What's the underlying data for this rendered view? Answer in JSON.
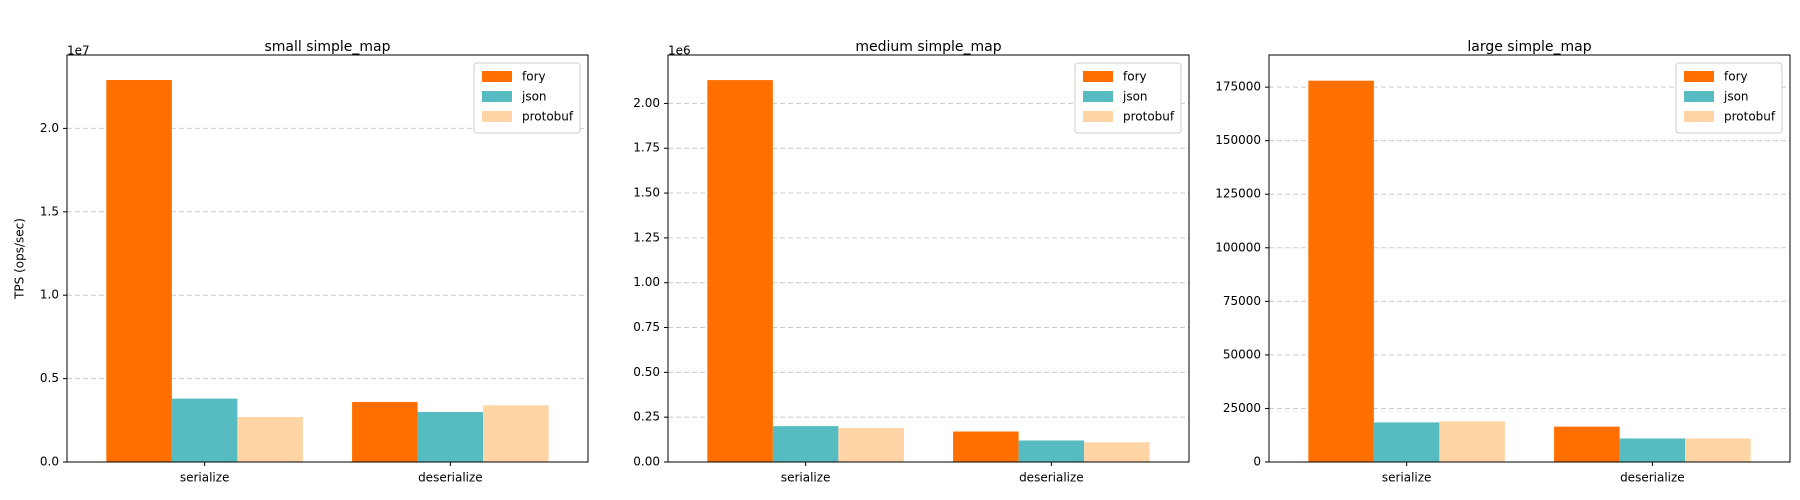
{
  "chart_data": [
    {
      "type": "bar",
      "title": "small simple_map",
      "ylabel": "TPS (ops/sec)",
      "y_offset_label": "1e7",
      "categories": [
        "serialize",
        "deserialize"
      ],
      "series": [
        {
          "name": "fory",
          "color": "#ff6f00",
          "values": [
            2.29,
            0.36
          ]
        },
        {
          "name": "json",
          "color": "#56bcc2",
          "values": [
            0.38,
            0.3
          ]
        },
        {
          "name": "protobuf",
          "color": "#ffd5a6",
          "values": [
            0.27,
            0.34
          ]
        }
      ],
      "ylim": [
        0,
        2.44
      ],
      "yticks": [
        {
          "value": 0,
          "label": "0.0"
        },
        0.5,
        {
          "value": 1,
          "label": "1.0"
        },
        1.5,
        {
          "value": 2,
          "label": "2.0"
        }
      ],
      "grid": true,
      "legend": "upper-right"
    },
    {
      "type": "bar",
      "title": "medium simple_map",
      "y_offset_label": "1e6",
      "categories": [
        "serialize",
        "deserialize"
      ],
      "series": [
        {
          "name": "fory",
          "color": "#ff6f00",
          "values": [
            2.13,
            0.17
          ]
        },
        {
          "name": "json",
          "color": "#56bcc2",
          "values": [
            0.2,
            0.12
          ]
        },
        {
          "name": "protobuf",
          "color": "#ffd5a6",
          "values": [
            0.19,
            0.11
          ]
        }
      ],
      "ylim": [
        0,
        2.27
      ],
      "yticks": [
        {
          "value": 0,
          "label": "0.00"
        },
        0.25,
        {
          "value": 0.5,
          "label": "0.50"
        },
        0.75,
        {
          "value": 1,
          "label": "1.00"
        },
        1.25,
        {
          "value": 1.5,
          "label": "1.50"
        },
        1.75,
        {
          "value": 2,
          "label": "2.00"
        }
      ],
      "grid": true,
      "legend": "upper-right"
    },
    {
      "type": "bar",
      "title": "large simple_map",
      "categories": [
        "serialize",
        "deserialize"
      ],
      "series": [
        {
          "name": "fory",
          "color": "#ff6f00",
          "values": [
            178000,
            16500
          ]
        },
        {
          "name": "json",
          "color": "#56bcc2",
          "values": [
            18500,
            11000
          ]
        },
        {
          "name": "protobuf",
          "color": "#ffd5a6",
          "values": [
            19000,
            11000
          ]
        }
      ],
      "ylim": [
        0,
        190000
      ],
      "yticks": [
        0,
        25000,
        50000,
        75000,
        100000,
        125000,
        150000,
        175000
      ],
      "grid": true,
      "legend": "upper-right"
    }
  ]
}
